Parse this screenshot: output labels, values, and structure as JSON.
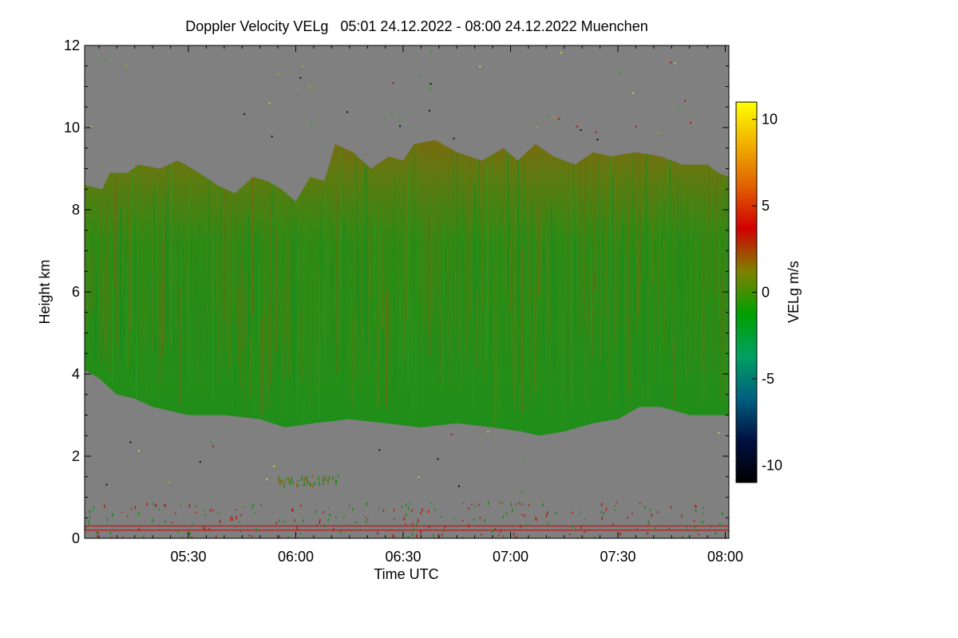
{
  "chart_data": {
    "type": "heatmap",
    "title": "Doppler Velocity VELg   05:01 24.12.2022 - 08:00 24.12.2022 Muenchen",
    "xlabel": "Time UTC",
    "ylabel": "Height km",
    "xlim_minutes": [
      301,
      481
    ],
    "ylim": [
      0,
      12
    ],
    "x_ticks": [
      {
        "label": "05:30",
        "minutes": 330
      },
      {
        "label": "06:00",
        "minutes": 360
      },
      {
        "label": "06:30",
        "minutes": 390
      },
      {
        "label": "07:00",
        "minutes": 420
      },
      {
        "label": "07:30",
        "minutes": 450
      },
      {
        "label": "08:00",
        "minutes": 480
      }
    ],
    "y_ticks": [
      "0",
      "2",
      "4",
      "6",
      "8",
      "10",
      "12"
    ],
    "y_tick_values": [
      0,
      2,
      4,
      6,
      8,
      10,
      12
    ],
    "colorbar": {
      "label": "VELg m/s",
      "range": [
        -11,
        11
      ],
      "ticks": [
        "-10",
        "-5",
        "0",
        "5",
        "10"
      ],
      "tick_values": [
        -10,
        -5,
        0,
        5,
        10
      ],
      "colors": [
        "#000000",
        "#001040",
        "#006080",
        "#00a060",
        "#00a000",
        "#808000",
        "#d00000",
        "#e06000",
        "#f0b000",
        "#ffff00"
      ]
    },
    "background_color": "#808080",
    "cloud": {
      "description_values": "cloud region of mostly negative (green) Doppler velocity with positive (reddish) near top",
      "base_km": [
        {
          "t": 301,
          "h": 4.1
        },
        {
          "t": 305,
          "h": 3.9
        },
        {
          "t": 310,
          "h": 3.5
        },
        {
          "t": 315,
          "h": 3.4
        },
        {
          "t": 320,
          "h": 3.2
        },
        {
          "t": 330,
          "h": 3.0
        },
        {
          "t": 340,
          "h": 3.0
        },
        {
          "t": 350,
          "h": 2.9
        },
        {
          "t": 357,
          "h": 2.7
        },
        {
          "t": 365,
          "h": 2.8
        },
        {
          "t": 375,
          "h": 2.9
        },
        {
          "t": 385,
          "h": 2.8
        },
        {
          "t": 395,
          "h": 2.7
        },
        {
          "t": 405,
          "h": 2.8
        },
        {
          "t": 415,
          "h": 2.7
        },
        {
          "t": 423,
          "h": 2.6
        },
        {
          "t": 428,
          "h": 2.5
        },
        {
          "t": 435,
          "h": 2.6
        },
        {
          "t": 443,
          "h": 2.8
        },
        {
          "t": 450,
          "h": 2.9
        },
        {
          "t": 456,
          "h": 3.2
        },
        {
          "t": 462,
          "h": 3.2
        },
        {
          "t": 470,
          "h": 3.0
        },
        {
          "t": 481,
          "h": 3.0
        }
      ],
      "top_km": [
        {
          "t": 301,
          "h": 8.6
        },
        {
          "t": 306,
          "h": 8.5
        },
        {
          "t": 308,
          "h": 8.9
        },
        {
          "t": 313,
          "h": 8.9
        },
        {
          "t": 316,
          "h": 9.1
        },
        {
          "t": 322,
          "h": 9.0
        },
        {
          "t": 327,
          "h": 9.2
        },
        {
          "t": 333,
          "h": 8.9
        },
        {
          "t": 338,
          "h": 8.6
        },
        {
          "t": 343,
          "h": 8.4
        },
        {
          "t": 348,
          "h": 8.8
        },
        {
          "t": 352,
          "h": 8.7
        },
        {
          "t": 356,
          "h": 8.5
        },
        {
          "t": 360,
          "h": 8.2
        },
        {
          "t": 364,
          "h": 8.8
        },
        {
          "t": 368,
          "h": 8.7
        },
        {
          "t": 371,
          "h": 9.6
        },
        {
          "t": 376,
          "h": 9.4
        },
        {
          "t": 381,
          "h": 9.0
        },
        {
          "t": 386,
          "h": 9.3
        },
        {
          "t": 390,
          "h": 9.2
        },
        {
          "t": 393,
          "h": 9.6
        },
        {
          "t": 399,
          "h": 9.7
        },
        {
          "t": 405,
          "h": 9.4
        },
        {
          "t": 412,
          "h": 9.2
        },
        {
          "t": 418,
          "h": 9.5
        },
        {
          "t": 422,
          "h": 9.2
        },
        {
          "t": 427,
          "h": 9.6
        },
        {
          "t": 432,
          "h": 9.3
        },
        {
          "t": 438,
          "h": 9.1
        },
        {
          "t": 443,
          "h": 9.4
        },
        {
          "t": 448,
          "h": 9.3
        },
        {
          "t": 455,
          "h": 9.4
        },
        {
          "t": 462,
          "h": 9.3
        },
        {
          "t": 468,
          "h": 9.1
        },
        {
          "t": 475,
          "h": 9.1
        },
        {
          "t": 478,
          "h": 8.9
        },
        {
          "t": 481,
          "h": 8.8
        }
      ]
    },
    "ground_clutter_km": [
      0.2,
      0.3
    ]
  }
}
